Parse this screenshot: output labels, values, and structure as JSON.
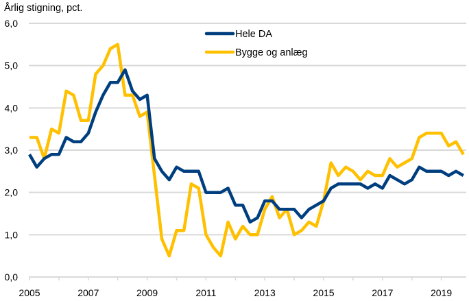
{
  "chart_data": {
    "type": "line",
    "title": "",
    "ylabel": "Årlig stigning, pct.",
    "xlabel": "",
    "ylim": [
      0,
      6
    ],
    "yticks": [
      0,
      1,
      2,
      3,
      4,
      5,
      6
    ],
    "ytick_labels": [
      "0,0",
      "1,0",
      "2,0",
      "3,0",
      "4,0",
      "5,0",
      "6,0"
    ],
    "xlim": [
      2005,
      2019.85
    ],
    "xticks_minor": [
      2005,
      2006,
      2007,
      2008,
      2009,
      2010,
      2011,
      2012,
      2013,
      2014,
      2015,
      2016,
      2017,
      2018,
      2019
    ],
    "xtick_labels": [
      "2005",
      "2007",
      "2009",
      "2011",
      "2013",
      "2015",
      "2017",
      "2019"
    ],
    "xtick_label_years": [
      2005,
      2007,
      2009,
      2011,
      2013,
      2015,
      2017,
      2019
    ],
    "grid": "horizontal",
    "legend": "top-center",
    "frequency": "quarterly",
    "x_start": 2005.0,
    "x_step": 0.25,
    "series": [
      {
        "name": "Hele DA",
        "color": "#003F7F",
        "values": [
          2.9,
          2.6,
          2.8,
          2.9,
          2.9,
          3.3,
          3.2,
          3.2,
          3.4,
          3.9,
          4.3,
          4.6,
          4.6,
          4.9,
          4.4,
          4.2,
          4.3,
          2.8,
          2.5,
          2.3,
          2.6,
          2.5,
          2.5,
          2.5,
          2.0,
          2.0,
          2.0,
          2.1,
          1.7,
          1.7,
          1.3,
          1.4,
          1.8,
          1.8,
          1.6,
          1.6,
          1.6,
          1.4,
          1.6,
          1.7,
          1.8,
          2.1,
          2.2,
          2.2,
          2.2,
          2.2,
          2.1,
          2.2,
          2.1,
          2.4,
          2.3,
          2.2,
          2.3,
          2.6,
          2.5,
          2.5,
          2.5,
          2.4,
          2.5,
          2.4
        ]
      },
      {
        "name": "Bygge og anlæg",
        "color": "#FFC000",
        "values": [
          3.3,
          3.3,
          2.8,
          3.5,
          3.4,
          4.4,
          4.3,
          3.7,
          3.7,
          4.8,
          5.0,
          5.4,
          5.5,
          4.3,
          4.3,
          3.8,
          3.9,
          2.4,
          0.9,
          0.5,
          1.1,
          1.1,
          2.2,
          2.1,
          1.0,
          0.7,
          0.5,
          1.3,
          0.9,
          1.2,
          1.0,
          1.0,
          1.6,
          1.9,
          1.4,
          1.6,
          1.0,
          1.1,
          1.3,
          1.2,
          1.8,
          2.7,
          2.4,
          2.6,
          2.5,
          2.3,
          2.5,
          2.4,
          2.4,
          2.8,
          2.6,
          2.7,
          2.8,
          3.3,
          3.4,
          3.4,
          3.4,
          3.1,
          3.2,
          2.9
        ]
      }
    ]
  }
}
